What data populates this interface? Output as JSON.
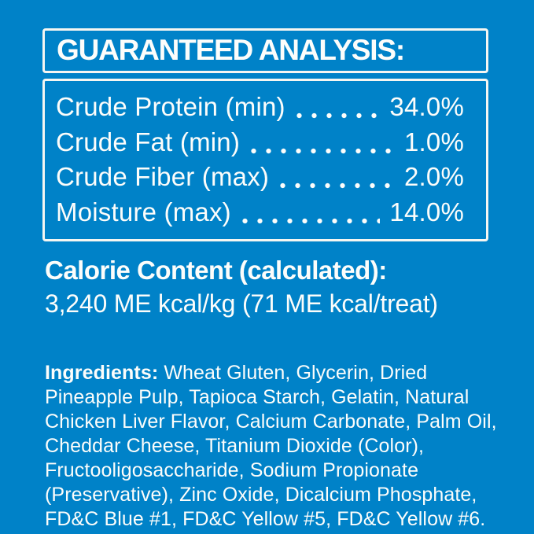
{
  "colors": {
    "background": "#0082c8",
    "text": "#fcfdfb",
    "border": "#f5f6f2"
  },
  "analysis": {
    "header": "GUARANTEED ANALYSIS:",
    "rows": [
      {
        "label": "Crude Protein (min)",
        "value": "34.0%"
      },
      {
        "label": "Crude Fat (min)",
        "value": "1.0%"
      },
      {
        "label": "Crude Fiber (max)",
        "value": "2.0%"
      },
      {
        "label": "Moisture (max)",
        "value": "14.0%"
      }
    ]
  },
  "calorie": {
    "heading": "Calorie Content (calculated):",
    "value": "3,240 ME kcal/kg (71 ME kcal/treat)"
  },
  "ingredients": {
    "heading": "Ingredients:",
    "list": "Wheat Gluten, Glycerin, Dried Pineapple Pulp, Tapioca Starch, Gelatin, Natural Chicken Liver Flavor, Calcium Carbonate, Palm Oil, Cheddar Cheese, Titanium Dioxide (Color), Fructooligosaccharide, Sodium Propionate (Preservative), Zinc Oxide, Dicalcium Phosphate, FD&C Blue #1, FD&C Yellow #5, FD&C Yellow #6."
  }
}
